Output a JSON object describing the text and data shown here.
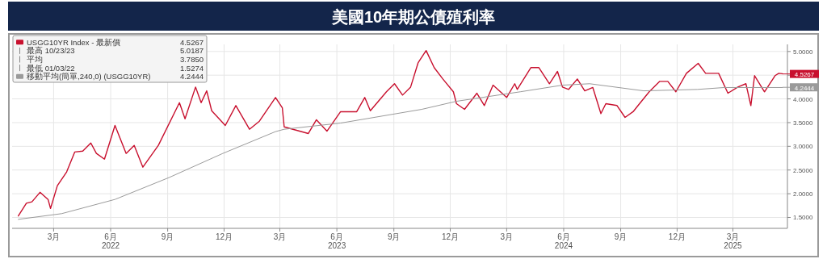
{
  "chart_data": {
    "type": "line",
    "title": "美國10年期公債殖利率",
    "xlim": [
      "2021-12-24",
      "2025-05-28"
    ],
    "ylim": [
      1.27,
      5.15
    ],
    "xticks": [
      {
        "value": "2022-03-01",
        "label": "3月"
      },
      {
        "value": "2022-06-01",
        "label": "6月\n2022"
      },
      {
        "value": "2022-09-01",
        "label": "9月"
      },
      {
        "value": "2022-12-01",
        "label": "12月"
      },
      {
        "value": "2023-03-01",
        "label": "3月"
      },
      {
        "value": "2023-06-01",
        "label": "6月\n2023"
      },
      {
        "value": "2023-09-01",
        "label": "9月"
      },
      {
        "value": "2023-12-01",
        "label": "12月"
      },
      {
        "value": "2024-03-01",
        "label": "3月"
      },
      {
        "value": "2024-06-01",
        "label": "6月\n2024"
      },
      {
        "value": "2024-09-01",
        "label": "9月"
      },
      {
        "value": "2024-12-01",
        "label": "12月"
      },
      {
        "value": "2025-03-01",
        "label": "3月\n2025"
      }
    ],
    "yticks": [
      {
        "value": 1.5,
        "label": "1.5000"
      },
      {
        "value": 2,
        "label": "2.0000"
      },
      {
        "value": 2.5,
        "label": "2.5000"
      },
      {
        "value": 3,
        "label": "3.0000"
      },
      {
        "value": 3.5,
        "label": "3.5000"
      },
      {
        "value": 4,
        "label": "4.0000"
      },
      {
        "value": 4.5,
        "label": null
      },
      {
        "value": 5,
        "label": "5.0000"
      }
    ],
    "grid": true,
    "legend": "top left",
    "series": [
      {
        "name": "USGG10YR Index - 最新價",
        "color": "#c8102e",
        "x": [
          "2022-01-03",
          "2022-01-16",
          "2022-01-25",
          "2022-02-07",
          "2022-02-20",
          "2022-02-24",
          "2022-03-07",
          "2022-03-22",
          "2022-04-04",
          "2022-04-17",
          "2022-04-30",
          "2022-05-09",
          "2022-05-22",
          "2022-06-08",
          "2022-06-26",
          "2022-07-09",
          "2022-07-23",
          "2022-08-17",
          "2022-09-20",
          "2022-09-29",
          "2022-10-16",
          "2022-10-25",
          "2022-11-03",
          "2022-11-11",
          "2022-12-03",
          "2022-12-20",
          "2023-01-11",
          "2023-01-27",
          "2023-02-22",
          "2023-03-05",
          "2023-03-08",
          "2023-04-16",
          "2023-04-29",
          "2023-05-16",
          "2023-06-07",
          "2023-07-03",
          "2023-07-16",
          "2023-07-25",
          "2023-08-20",
          "2023-09-02",
          "2023-09-15",
          "2023-09-28",
          "2023-10-10",
          "2023-10-23",
          "2023-11-05",
          "2023-11-19",
          "2023-12-06",
          "2023-12-11",
          "2023-12-24",
          "2024-01-13",
          "2024-01-25",
          "2024-02-08",
          "2024-03-01",
          "2024-03-14",
          "2024-03-18",
          "2024-04-09",
          "2024-04-22",
          "2024-05-09",
          "2024-05-22",
          "2024-05-30",
          "2024-06-09",
          "2024-06-23",
          "2024-07-05",
          "2024-07-18",
          "2024-07-31",
          "2024-08-08",
          "2024-08-26",
          "2024-09-08",
          "2024-09-21",
          "2024-09-29",
          "2024-10-17",
          "2024-11-03",
          "2024-11-16",
          "2024-11-29",
          "2024-12-16",
          "2025-01-04",
          "2025-01-16",
          "2025-02-06",
          "2025-02-21",
          "2025-03-09",
          "2025-03-22",
          "2025-03-30",
          "2025-04-05",
          "2025-04-21",
          "2025-05-08",
          "2025-05-14",
          "2025-05-20"
        ],
        "values": [
          1.53,
          1.8,
          1.83,
          2.03,
          1.88,
          1.69,
          2.17,
          2.46,
          2.88,
          2.9,
          3.07,
          2.85,
          2.73,
          3.44,
          2.85,
          3.02,
          2.56,
          3.02,
          3.92,
          3.58,
          4.25,
          3.92,
          4.17,
          3.75,
          3.44,
          3.86,
          3.36,
          3.53,
          4.03,
          3.81,
          3.41,
          3.27,
          3.56,
          3.32,
          3.73,
          3.73,
          4.03,
          3.75,
          4.15,
          4.32,
          4.08,
          4.25,
          4.76,
          5.02,
          4.66,
          4.42,
          4.15,
          3.9,
          3.78,
          4.12,
          3.86,
          4.29,
          4.03,
          4.32,
          4.2,
          4.66,
          4.66,
          4.32,
          4.58,
          4.25,
          4.2,
          4.42,
          4.17,
          4.24,
          3.69,
          3.9,
          3.86,
          3.61,
          3.73,
          3.86,
          4.15,
          4.37,
          4.37,
          4.15,
          4.54,
          4.75,
          4.54,
          4.54,
          4.12,
          4.25,
          4.32,
          3.86,
          4.49,
          4.15,
          4.49,
          4.54,
          4.53
        ]
      },
      {
        "name": "移動平均(簡單,240,0) (USGG10YR)",
        "color": "#9a9a9a",
        "x": [
          "2022-01-03",
          "2022-03-14",
          "2022-06-08",
          "2022-09-03",
          "2022-11-29",
          "2023-02-22",
          "2023-03-08",
          "2023-06-07",
          "2023-10-16",
          "2023-12-11",
          "2024-03-23",
          "2024-05-30",
          "2024-07-13",
          "2024-10-08",
          "2025-01-03",
          "2025-02-15",
          "2025-05-20"
        ],
        "values": [
          1.46,
          1.58,
          1.88,
          2.34,
          2.85,
          3.31,
          3.36,
          3.49,
          3.78,
          3.95,
          4.15,
          4.29,
          4.32,
          4.17,
          4.2,
          4.24,
          4.24
        ]
      }
    ],
    "annotations": [
      "最高 10/23/23",
      "5.0187",
      "平均",
      "3.7850",
      "最低 01/03/22",
      "1.5274",
      {
        "text": "4.5267",
        "x": "2025-05-20",
        "y": 4.5267
      },
      {
        "text": "4.2444",
        "x": "2025-05-20",
        "y": 4.2444
      }
    ]
  }
}
